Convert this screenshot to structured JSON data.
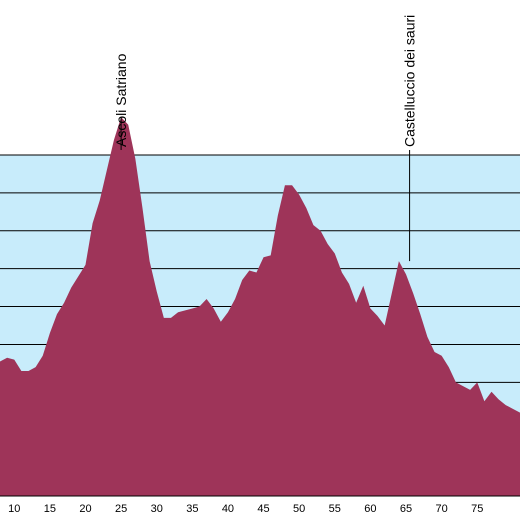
{
  "chart_data": {
    "type": "area",
    "title": "",
    "xlabel": "",
    "ylabel": "",
    "xlim": [
      8,
      81
    ],
    "ylim": [
      0,
      900
    ],
    "grid": true,
    "x_ticks": [
      10,
      15,
      20,
      25,
      30,
      35,
      40,
      45,
      50,
      55,
      60,
      65,
      70,
      75
    ],
    "x_tick_labels": [
      "10",
      "15",
      "20",
      "25",
      "30",
      "35",
      "40",
      "45",
      "50",
      "55",
      "60",
      "65",
      "70",
      "75"
    ],
    "y_gridlines": [
      100,
      200,
      300,
      400,
      500,
      600,
      700,
      800,
      900
    ],
    "series": [
      {
        "x": [
          8,
          9,
          10,
          11,
          12,
          13,
          14,
          15,
          16,
          17,
          18,
          19,
          20,
          21,
          22,
          23,
          24,
          25,
          26,
          27,
          28,
          29,
          30,
          31,
          32,
          33,
          34,
          35,
          36,
          37,
          38,
          39,
          40,
          41,
          42,
          43,
          44,
          45,
          46,
          47,
          48,
          49,
          50,
          51,
          52,
          53,
          54,
          55,
          56,
          57,
          58,
          59,
          60,
          61,
          62,
          63,
          64,
          65,
          66,
          67,
          68,
          69,
          70,
          71,
          72,
          73,
          74,
          75,
          76,
          77,
          78,
          79,
          80,
          81
        ],
        "y": [
          355,
          365,
          360,
          330,
          330,
          340,
          370,
          430,
          480,
          510,
          550,
          580,
          610,
          720,
          780,
          860,
          940,
          1000,
          980,
          890,
          760,
          620,
          540,
          470,
          470,
          485,
          490,
          495,
          500,
          520,
          495,
          460,
          485,
          520,
          570,
          595,
          590,
          630,
          635,
          740,
          820,
          820,
          795,
          760,
          715,
          700,
          665,
          640,
          590,
          560,
          510,
          555,
          495,
          475,
          450,
          535,
          620,
          585,
          535,
          480,
          420,
          380,
          370,
          340,
          300,
          290,
          280,
          300,
          250,
          275,
          255,
          240,
          230,
          220
        ]
      }
    ],
    "annotations": [
      {
        "label": "Ascoli Satriano",
        "x": 25,
        "y": 1000
      },
      {
        "label": "Castelluccio dei sauri",
        "x": 65.5,
        "y": 620
      }
    ],
    "colors": {
      "fill": "#9e3459",
      "background": "#c8ecfb",
      "gridline": "#000000"
    }
  }
}
